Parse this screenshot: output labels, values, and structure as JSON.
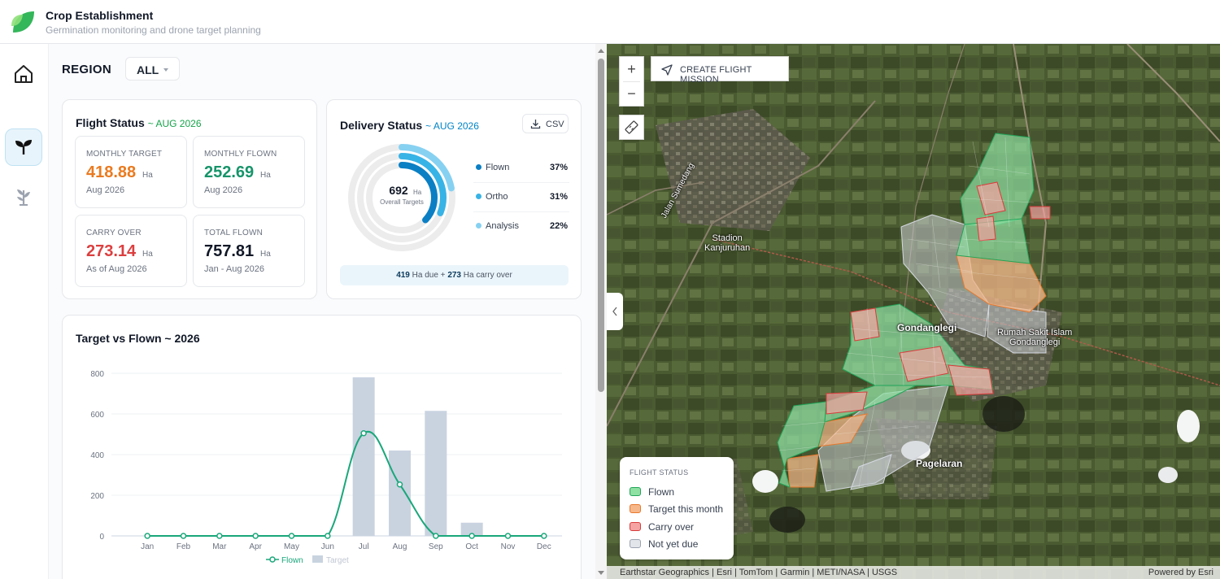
{
  "app": {
    "title": "Crop Establishment",
    "subtitle": "Germination monitoring and drone target planning"
  },
  "nav": {
    "items": [
      {
        "icon": "home-icon",
        "active": false
      },
      {
        "icon": "sprout-icon",
        "active": true
      },
      {
        "icon": "plant-icon",
        "active": false
      }
    ]
  },
  "region": {
    "label": "REGION",
    "value": "ALL"
  },
  "flight_status": {
    "title": "Flight Status",
    "period": "~ AUG 2026",
    "stats": [
      {
        "label": "MONTHLY TARGET",
        "value": "418.88",
        "unit": "Ha",
        "note": "Aug 2026",
        "color": "#ea7a1f"
      },
      {
        "label": "MONTHLY FLOWN",
        "value": "252.69",
        "unit": "Ha",
        "note": "Aug 2026",
        "color": "#16946a"
      },
      {
        "label": "CARRY OVER",
        "value": "273.14",
        "unit": "Ha",
        "note": "As of Aug 2026",
        "color": "#dc3f3f"
      },
      {
        "label": "TOTAL FLOWN",
        "value": "757.81",
        "unit": "Ha",
        "note": "Jan - Aug 2026",
        "color": "#111827"
      }
    ]
  },
  "delivery_status": {
    "title": "Delivery Status",
    "period": "~ AUG 2026",
    "csv_label": "CSV",
    "center_value": "692",
    "center_unit": "Ha",
    "center_label": "Overall Targets",
    "items": [
      {
        "name": "Flown",
        "pct": "37%",
        "fraction": 0.37,
        "color": "#0b7fc4"
      },
      {
        "name": "Ortho",
        "pct": "31%",
        "fraction": 0.31,
        "color": "#38b3e6"
      },
      {
        "name": "Analysis",
        "pct": "22%",
        "fraction": 0.22,
        "color": "#86d1f2"
      }
    ],
    "due_text": {
      "due_value": "419",
      "due_label": "Ha due +",
      "carry_value": "273",
      "carry_label": "Ha carry over"
    }
  },
  "chart_data": {
    "type": "bar",
    "title": "Target vs Flown ~ 2026",
    "categories": [
      "Jan",
      "Feb",
      "Mar",
      "Apr",
      "May",
      "Jun",
      "Jul",
      "Aug",
      "Sep",
      "Oct",
      "Nov",
      "Dec"
    ],
    "ylim": [
      0,
      800
    ],
    "yticks": [
      0,
      200,
      400,
      600,
      800
    ],
    "series": [
      {
        "name": "Target",
        "kind": "bar",
        "color": "#c9d3e0",
        "values": [
          0,
          0,
          0,
          0,
          0,
          0,
          780,
          420,
          615,
          65,
          0,
          0
        ]
      },
      {
        "name": "Flown",
        "kind": "line",
        "color": "#1aa77a",
        "values": [
          0,
          0,
          0,
          0,
          0,
          0,
          505,
          253,
          0,
          0,
          0,
          0
        ]
      }
    ],
    "legend": [
      "Flown",
      "Target"
    ],
    "legend_position": "bottom",
    "grid": true
  },
  "map": {
    "create_mission_label": "CREATE FLIGHT MISSION",
    "legend_title": "FLIGHT STATUS",
    "legend_items": [
      {
        "label": "Flown",
        "fill": "#8fe0a3",
        "stroke": "#22a559"
      },
      {
        "label": "Target this month",
        "fill": "#f6b88a",
        "stroke": "#e8782c"
      },
      {
        "label": "Carry over",
        "fill": "#f5a3a3",
        "stroke": "#d93b3b"
      },
      {
        "label": "Not yet due",
        "fill": "#e2e5ea",
        "stroke": "#9ca3af"
      }
    ],
    "place_labels": {
      "stadion": "Stadion\nKanjuruhan",
      "gondanglegi": "Gondanglegi",
      "rumah_sakit": "Rumah Sakit Islam\nGondanglegi",
      "pagelaran": "Pagelaran",
      "jalan_sumedang": "Jalan Sumedang"
    },
    "attribution": "Earthstar Geographics | Esri | TomTom | Garmin | METI/NASA | USGS",
    "powered_by": "Powered by Esri"
  }
}
